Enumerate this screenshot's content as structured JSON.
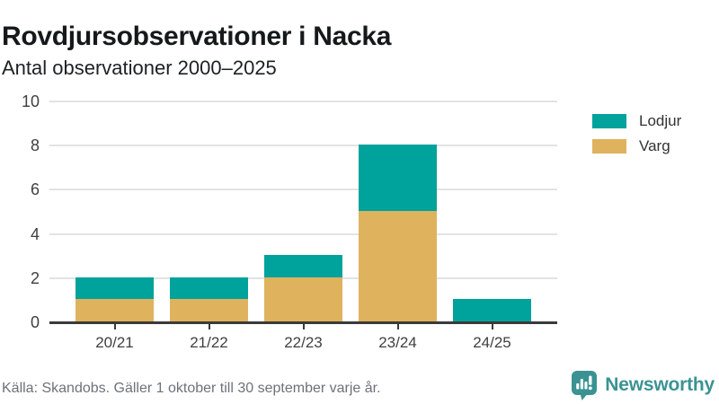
{
  "header": {
    "title": "Rovdjursobservationer i Nacka",
    "subtitle": "Antal observationer 2000–2025"
  },
  "chart_data": {
    "type": "bar",
    "stacked": true,
    "title": "Rovdjursobservationer i Nacka",
    "subtitle": "Antal observationer 2000–2025",
    "categories": [
      "20/21",
      "21/22",
      "22/23",
      "23/24",
      "24/25"
    ],
    "series": [
      {
        "name": "Varg",
        "color": "#dfb25e",
        "values": [
          1,
          1,
          2,
          5,
          0
        ]
      },
      {
        "name": "Lodjur",
        "color": "#00a29c",
        "values": [
          1,
          1,
          1,
          3,
          1
        ]
      }
    ],
    "totals": [
      2,
      2,
      3,
      8,
      1
    ],
    "xlabel": "",
    "ylabel": "",
    "ylim": [
      0,
      10
    ],
    "yticks": [
      0,
      2,
      4,
      6,
      8,
      10
    ],
    "grid": true,
    "legend": {
      "position": "right",
      "items": [
        {
          "label": "Lodjur",
          "color": "#00a29c"
        },
        {
          "label": "Varg",
          "color": "#dfb25e"
        }
      ]
    }
  },
  "footer": {
    "source": "Källa: Skandobs. Gäller 1 oktober till 30 september varje år.",
    "brand": "Newsworthy"
  },
  "colors": {
    "lodjur_teal": "#00a29c",
    "varg_gold": "#dfb25e",
    "brand_teal": "#3a9392",
    "grid": "#e3e3e3",
    "axis": "#3a3a3a"
  }
}
